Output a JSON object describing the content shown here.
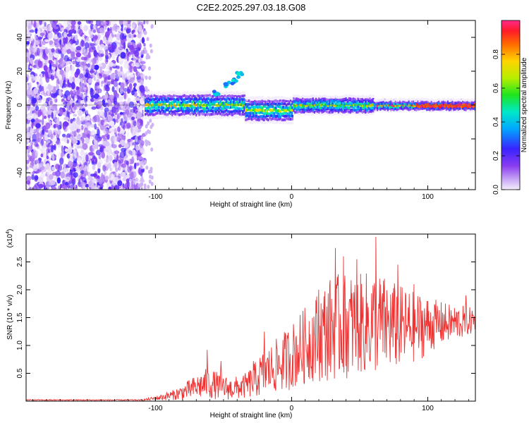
{
  "chart_data": [
    {
      "type": "heatmap",
      "title": "C2E2.2025.297.03.18.G08",
      "xlabel": "Height of straight line (km)",
      "ylabel": "Frequency (Hz)",
      "xlim": [
        -195,
        135
      ],
      "ylim": [
        -50,
        50
      ],
      "xticks": [
        -100,
        0,
        100
      ],
      "yticks": [
        -40,
        -20,
        0,
        20,
        40
      ],
      "noise_region_x": [
        -195,
        -108
      ],
      "signal": {
        "description_x": [
          -108,
          135
        ],
        "center_freq_segments": [
          {
            "x": [
              -108,
              -35
            ],
            "freq": 0
          },
          {
            "x": [
              -35,
              0
            ],
            "freq": -3
          },
          {
            "x": [
              0,
              135
            ],
            "freq": 0
          }
        ],
        "feature_points": [
          [
            -47,
            12
          ],
          [
            -42,
            14
          ],
          [
            -38,
            18
          ],
          [
            -55,
            7
          ]
        ]
      },
      "colorbar": {
        "label": "Normalized spectral amplitude",
        "ticks": [
          "0.0",
          "0.2",
          "0.4",
          "0.6",
          "0.8"
        ],
        "range": [
          0,
          1
        ]
      }
    },
    {
      "type": "line",
      "title": "",
      "xlabel": "Height of straight line (km)",
      "ylabel": "SNR (10 * v/v)",
      "y_multiplier_label": "(x10",
      "y_multiplier_exp": "4",
      "xlim": [
        -195,
        135
      ],
      "ylim": [
        0,
        3.0
      ],
      "xticks": [
        -100,
        0,
        100
      ],
      "yticks": [
        "0.5",
        "1.0",
        "1.5",
        "2.0",
        "2.5"
      ],
      "ytick_values": [
        0.5,
        1.0,
        1.5,
        2.0,
        2.5
      ],
      "envelope": {
        "x": [
          -195,
          -110,
          -100,
          -85,
          -70,
          -62,
          -55,
          -45,
          -35,
          -28,
          -22,
          -15,
          -5,
          5,
          15,
          25,
          30,
          40,
          50,
          60,
          65,
          75,
          85,
          95,
          105,
          115,
          125,
          135
        ],
        "mean": [
          0.02,
          0.02,
          0.05,
          0.12,
          0.25,
          0.32,
          0.28,
          0.22,
          0.26,
          0.36,
          0.48,
          0.58,
          0.72,
          0.9,
          1.1,
          1.25,
          1.32,
          1.35,
          1.38,
          1.42,
          1.4,
          1.35,
          1.32,
          1.35,
          1.38,
          1.4,
          1.42,
          1.45
        ],
        "amplitude": [
          0.01,
          0.01,
          0.04,
          0.1,
          0.22,
          0.28,
          0.25,
          0.2,
          0.22,
          0.3,
          0.4,
          0.45,
          0.55,
          0.65,
          0.75,
          0.9,
          0.95,
          0.95,
          0.9,
          0.95,
          0.9,
          0.8,
          0.7,
          0.6,
          0.45,
          0.35,
          0.3,
          0.22
        ]
      },
      "peaks": [
        [
          -62,
          0.92
        ],
        [
          -52,
          0.72
        ],
        [
          -28,
          0.72
        ],
        [
          -20,
          1.25
        ],
        [
          20,
          2.0
        ],
        [
          32,
          2.75
        ],
        [
          38,
          2.6
        ],
        [
          48,
          2.55
        ],
        [
          62,
          2.95
        ],
        [
          78,
          2.45
        ],
        [
          90,
          2.1
        ],
        [
          128,
          1.9
        ]
      ],
      "color": "#ee3333"
    }
  ]
}
